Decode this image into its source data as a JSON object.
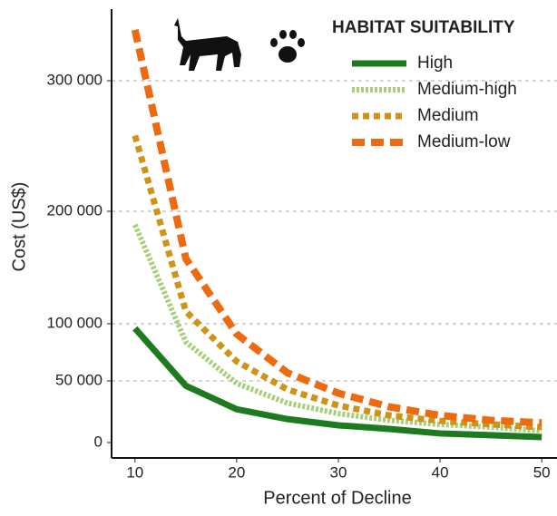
{
  "chart_data": {
    "type": "line",
    "xlabel": "Percent of Decline",
    "ylabel": "Cost (US$)",
    "legend_title": "HABITAT SUITABILITY",
    "legend": "top-right",
    "grid": true,
    "x": [
      10,
      15,
      20,
      25,
      30,
      35,
      40,
      45,
      50
    ],
    "xlim": [
      7.7,
      51.5
    ],
    "xticks": [
      10,
      20,
      30,
      40,
      50
    ],
    "ylim": [
      0,
      345000
    ],
    "yticks": [
      0,
      {
        "value": 50000,
        "label": "50 000"
      },
      {
        "value": 100000,
        "label": "100 000"
      },
      {
        "value": 200000,
        "label": "200 000"
      },
      {
        "value": 300000,
        "label": "300 000"
      }
    ],
    "series": [
      {
        "name": "High",
        "color": "#1e7a1e",
        "dash": "solid",
        "values": [
          96000,
          46000,
          27000,
          19000,
          14000,
          11000,
          7400,
          6000,
          4400
        ]
      },
      {
        "name": "Medium-high",
        "color": "#a9cf7a",
        "dash": "dotted",
        "values": [
          188000,
          84000,
          48000,
          32000,
          23500,
          18000,
          14700,
          12500,
          9500
        ]
      },
      {
        "name": "Medium",
        "color": "#cf9317",
        "dash": "dashed-short",
        "values": [
          258000,
          111000,
          67000,
          43000,
          30000,
          22000,
          17600,
          14700,
          12500
        ]
      },
      {
        "name": "Medium-low",
        "color": "#ee6a10",
        "dash": "dashed",
        "values": [
          339000,
          158000,
          91000,
          57000,
          40000,
          29000,
          22000,
          18000,
          16000
        ]
      }
    ]
  }
}
